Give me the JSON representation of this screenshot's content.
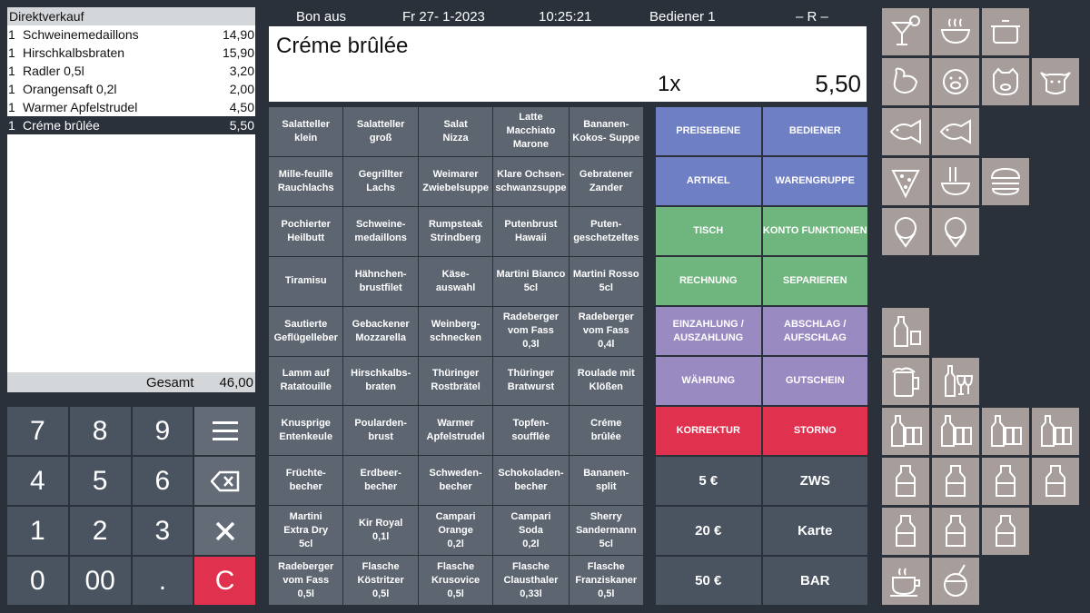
{
  "receipt": {
    "title": "Direktverkauf",
    "items": [
      {
        "qty": "1",
        "name": "Schweinemedaillons",
        "price": "14,90",
        "selected": false
      },
      {
        "qty": "1",
        "name": "Hirschkalbsbraten",
        "price": "15,90",
        "selected": false
      },
      {
        "qty": "1",
        "name": "Radler 0,5l",
        "price": "3,20",
        "selected": false
      },
      {
        "qty": "1",
        "name": "Orangensaft 0,2l",
        "price": "2,00",
        "selected": false
      },
      {
        "qty": "1",
        "name": "Warmer Apfelstrudel",
        "price": "4,50",
        "selected": false
      },
      {
        "qty": "1",
        "name": "Créme brûlée",
        "price": "5,50",
        "selected": true
      }
    ],
    "total_label": "Gesamt",
    "total_value": "46,00"
  },
  "header": {
    "bon": "Bon aus",
    "date": "Fr  27- 1-2023",
    "time": "10:25:21",
    "user": "Bediener 1",
    "mode": "– R –"
  },
  "display": {
    "item_name": "Créme brûlée",
    "quantity": "1x",
    "price": "5,50"
  },
  "numpad": {
    "keys": [
      "7",
      "8",
      "9",
      "≡",
      "4",
      "5",
      "6",
      "⌫",
      "1",
      "2",
      "3",
      "✕",
      "0",
      "00",
      ".",
      "C"
    ]
  },
  "products": [
    "Salatteller\nklein",
    "Salatteller\ngroß",
    "Salat\nNizza",
    "Latte Macchiato\nMarone",
    "Bananen-\nKokos- Suppe",
    "Mille-feuille\nRauchlachs",
    "Gegrillter\nLachs",
    "Weimarer\nZwiebelsuppe",
    "Klare Ochsen-\nschwanzsuppe",
    "Gebratener\nZander",
    "Pochierter\nHeilbutt",
    "Schweine-\nmedaillons",
    "Rumpsteak\nStrindberg",
    "Putenbrust\nHawaii",
    "Puten-\ngeschetzeltes",
    "Tiramisu",
    "Hähnchen-\nbrustfilet",
    "Käse-\nauswahl",
    "Martini Bianco\n5cl",
    "Martini Rosso\n5cl",
    "Sautierte\nGeflügelleber",
    "Gebackener\nMozzarella",
    "Weinberg-\nschnecken",
    "Radeberger\nvom Fass\n0,3l",
    "Radeberger\nvom Fass\n0,4l",
    "Lamm auf\nRatatouille",
    "Hirschkalbs-\nbraten",
    "Thüringer\nRostbrätel",
    "Thüringer\nBratwurst",
    "Roulade mit\nKlößen",
    "Knusprige\nEntenkeule",
    "Poularden-\nbrust",
    "Warmer\nApfelstrudel",
    "Topfen-\nsoufflée",
    "Créme\nbrûlée",
    "Früchte-\nbecher",
    "Erdbeer-\nbecher",
    "Schweden-\nbecher",
    "Schokoladen-\nbecher",
    "Bananen-\nsplit",
    "Martini\nExtra Dry\n5cl",
    "Kir Royal\n0,1l",
    "Campari\nOrange\n0,2l",
    "Campari\nSoda\n0,2l",
    "Sherry\nSandermann\n5cl",
    "Radeberger\nvom Fass\n0,5l",
    "Flasche\nKöstritzer\n0,5l",
    "Flasche\nKrusovice\n0,5l",
    "Flasche\nClausthaler\n0,33l",
    "Flasche\nFranziskaner\n0,5l"
  ],
  "functions": [
    {
      "label": "PREISEBENE",
      "color": "blue"
    },
    {
      "label": "BEDIENER",
      "color": "blue"
    },
    {
      "label": "ARTIKEL",
      "color": "blue"
    },
    {
      "label": "WARENGRUPPE",
      "color": "blue"
    },
    {
      "label": "TISCH",
      "color": "green"
    },
    {
      "label": "KONTO FUNKTIONEN",
      "color": "green"
    },
    {
      "label": "RECHNUNG",
      "color": "green"
    },
    {
      "label": "SEPARIEREN",
      "color": "green"
    },
    {
      "label": "EINZAHLUNG /\nAUSZAHLUNG",
      "color": "purple"
    },
    {
      "label": "ABSCHLAG /\nAUFSCHLAG",
      "color": "purple"
    },
    {
      "label": "WÄHRUNG",
      "color": "purple"
    },
    {
      "label": "GUTSCHEIN",
      "color": "purple"
    },
    {
      "label": "KORREKTUR",
      "color": "red"
    },
    {
      "label": "STORNO",
      "color": "red"
    },
    {
      "label": "5 €",
      "color": "dark"
    },
    {
      "label": "ZWS",
      "color": "dark"
    },
    {
      "label": "20 €",
      "color": "dark"
    },
    {
      "label": "Karte",
      "color": "dark"
    },
    {
      "label": "50 €",
      "color": "dark"
    },
    {
      "label": "BAR",
      "color": "dark"
    }
  ],
  "colors": {
    "background": "#2a313b",
    "key": "#5d6571",
    "blue": "#6f7fc4",
    "green": "#6fb57e",
    "purple": "#9a8ac2",
    "red": "#e0314e",
    "icon_tile": "#a79e9c"
  },
  "icons": [
    "cocktail-shrimp-icon",
    "soup-bowl-icon",
    "cooking-pot-icon",
    "chicken-icon",
    "pig-icon",
    "boar-icon",
    "cow-icon",
    "fish-icon",
    "fish-icon",
    "pizza-icon",
    "pasta-icon",
    "burger-icon",
    "ice-cream-icon",
    "ice-cream-icon",
    "bottle-glass-icon",
    "beer-mug-icon",
    "wine-bottle-glasses-icon",
    "bottle-glasses-icon",
    "bottle-glasses-icon",
    "bottle-glasses-icon",
    "bottle-glasses-icon",
    "bottle-icon",
    "bottle-icon",
    "bottle-icon",
    "bottle-icon",
    "bottle-icon",
    "bottle-icon",
    "bottle-icon",
    "coffee-cup-icon",
    "coconut-drink-icon"
  ]
}
